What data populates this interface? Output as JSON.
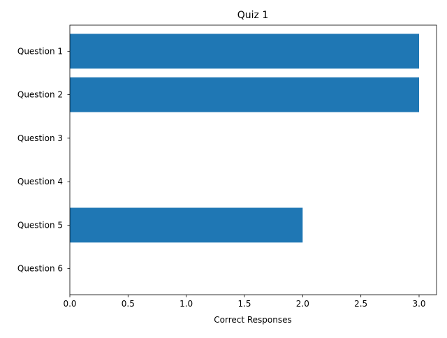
{
  "chart_data": {
    "type": "bar",
    "orientation": "horizontal",
    "title": "Quiz 1",
    "xlabel": "Correct Responses",
    "ylabel": "",
    "categories": [
      "Question 1",
      "Question 2",
      "Question 3",
      "Question 4",
      "Question 5",
      "Question 6"
    ],
    "values": [
      3,
      3,
      0,
      0,
      2,
      0
    ],
    "xlim": [
      0,
      3.15
    ],
    "xticks": [
      "0.0",
      "0.5",
      "1.0",
      "1.5",
      "2.0",
      "2.5",
      "3.0"
    ],
    "grid": false,
    "legend": "none",
    "bar_color": "#1f77b4"
  }
}
